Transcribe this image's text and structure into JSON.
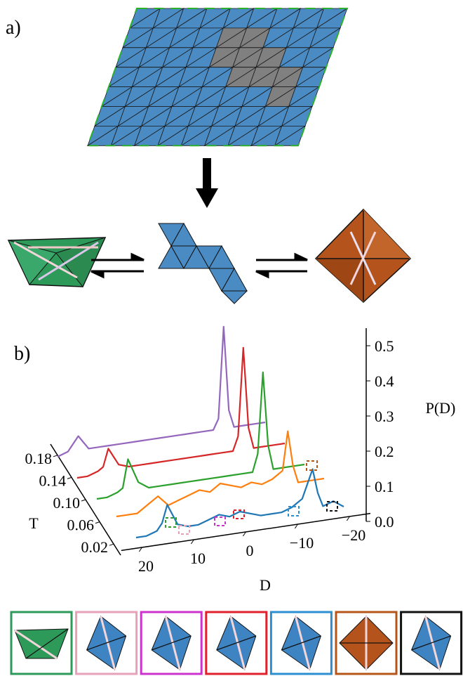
{
  "panel_labels": {
    "a": "a)",
    "b": "b)"
  },
  "chart_data": {
    "type": "waterfall3d",
    "x_label": "D",
    "y_label": "T",
    "z_label": "P(D)",
    "x": [
      20,
      18,
      16,
      15,
      14,
      12,
      10,
      8,
      6,
      4,
      2,
      0,
      -2,
      -4,
      -6,
      -8,
      -10,
      -11,
      -12,
      -13,
      -14,
      -15,
      -16,
      -18,
      -20
    ],
    "series": [
      {
        "t": 0.02,
        "color": "#1f77b4",
        "values": [
          0.01,
          0.01,
          0.02,
          0.04,
          0.09,
          0.03,
          0.02,
          0.02,
          0.03,
          0.04,
          0.03,
          0.04,
          0.03,
          0.02,
          0.02,
          0.02,
          0.03,
          0.04,
          0.05,
          0.09,
          0.13,
          0.06,
          0.02,
          0.03,
          0.01
        ]
      },
      {
        "t": 0.06,
        "color": "#ff7f0e",
        "values": [
          0.01,
          0.01,
          0.01,
          0.02,
          0.03,
          0.05,
          0.02,
          0.03,
          0.04,
          0.05,
          0.04,
          0.06,
          0.05,
          0.04,
          0.05,
          0.04,
          0.05,
          0.06,
          0.07,
          0.18,
          0.08,
          0.03,
          0.03,
          0.03,
          0.03
        ]
      },
      {
        "t": 0.1,
        "color": "#2ca02c",
        "values": [
          0.0,
          0.0,
          0.01,
          0.02,
          0.1,
          0.03,
          0.01,
          0.01,
          0.01,
          0.01,
          0.01,
          0.01,
          0.01,
          0.01,
          0.01,
          0.01,
          0.01,
          0.06,
          0.29,
          0.08,
          0.01,
          0.01,
          0.01,
          0.01,
          0.01
        ]
      },
      {
        "t": 0.14,
        "color": "#d62728",
        "values": [
          0.0,
          0.0,
          0.01,
          0.02,
          0.07,
          0.02,
          0.01,
          0.01,
          0.01,
          0.01,
          0.01,
          0.01,
          0.01,
          0.01,
          0.01,
          0.01,
          0.01,
          0.05,
          0.3,
          0.07,
          0.01,
          0.01,
          0.01,
          0.01,
          0.01
        ]
      },
      {
        "t": 0.18,
        "color": "#9467bd",
        "values": [
          0.0,
          0.01,
          0.05,
          0.03,
          0.01,
          0.01,
          0.01,
          0.01,
          0.01,
          0.01,
          0.01,
          0.01,
          0.01,
          0.01,
          0.01,
          0.01,
          0.01,
          0.04,
          0.3,
          0.06,
          0.01,
          0.01,
          0.01,
          0.01,
          0.01
        ]
      }
    ],
    "xlim": [
      24,
      -24
    ],
    "ylim": [
      0,
      0.2
    ],
    "zlim": [
      0,
      0.55
    ],
    "xticks": [
      20,
      10,
      0,
      {
        "value": -10,
        "label": "−10"
      },
      {
        "value": -20,
        "label": "−20"
      }
    ],
    "yticks": [
      0.02,
      0.06,
      {
        "value": 0.1,
        "label": "0.10"
      },
      0.14,
      0.18
    ],
    "zticks": [
      {
        "value": 0,
        "label": "0.0"
      },
      0.1,
      0.2,
      0.3,
      0.4,
      0.5
    ]
  }
}
